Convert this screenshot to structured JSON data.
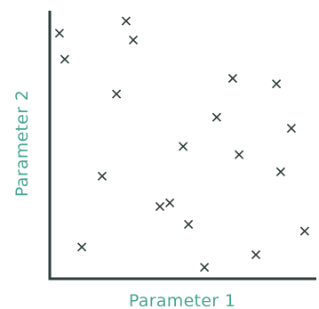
{
  "colors": {
    "axis": "#2d3a3a",
    "marker": "#2d3a3a",
    "label": "#46a493",
    "background": "#ffffff"
  },
  "chart_data": {
    "type": "scatter",
    "title": "",
    "xlabel": "Parameter 1",
    "ylabel": "Parameter 2",
    "grid": false,
    "legend": "none",
    "marker": "x",
    "xlim": [
      0,
      100
    ],
    "ylim": [
      0,
      100
    ],
    "points": [
      {
        "x": 3.3,
        "y": 92.5
      },
      {
        "x": 5.3,
        "y": 81.7
      },
      {
        "x": 28.3,
        "y": 97.6
      },
      {
        "x": 31.0,
        "y": 89.7
      },
      {
        "x": 24.7,
        "y": 67.3
      },
      {
        "x": 68.3,
        "y": 73.8
      },
      {
        "x": 84.7,
        "y": 71.5
      },
      {
        "x": 62.3,
        "y": 57.7
      },
      {
        "x": 90.3,
        "y": 53.1
      },
      {
        "x": 49.7,
        "y": 45.6
      },
      {
        "x": 70.7,
        "y": 42.2
      },
      {
        "x": 86.3,
        "y": 35.1
      },
      {
        "x": 19.3,
        "y": 33.3
      },
      {
        "x": 41.0,
        "y": 20.7
      },
      {
        "x": 44.7,
        "y": 22.2
      },
      {
        "x": 51.7,
        "y": 13.3
      },
      {
        "x": 95.3,
        "y": 10.5
      },
      {
        "x": 11.7,
        "y": 3.9
      },
      {
        "x": 77.0,
        "y": 0.7
      },
      {
        "x": 57.7,
        "y": -4.5
      }
    ]
  }
}
